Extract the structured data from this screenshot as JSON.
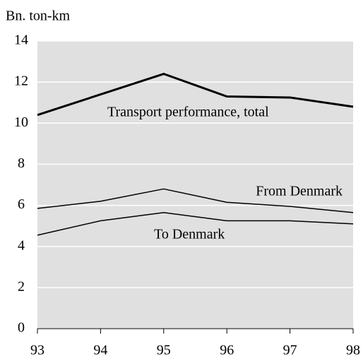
{
  "chart_data": {
    "type": "line",
    "y_label": "Bn. ton-km",
    "categories": [
      "93",
      "94",
      "95",
      "96",
      "97",
      "98"
    ],
    "series": [
      {
        "name": "Transport performance, total",
        "color": "#000000",
        "width": 3,
        "values": [
          10.4,
          11.4,
          12.4,
          11.3,
          11.25,
          10.8
        ]
      },
      {
        "name": "From Denmark",
        "color": "#000000",
        "width": 1.5,
        "values": [
          5.85,
          6.2,
          6.8,
          6.15,
          5.95,
          5.65
        ]
      },
      {
        "name": "To Denmark",
        "color": "#000000",
        "width": 1.5,
        "values": [
          4.55,
          5.25,
          5.65,
          5.25,
          5.25,
          5.1
        ]
      }
    ],
    "ylim": [
      0,
      14
    ],
    "yticks": [
      0,
      2,
      4,
      6,
      8,
      10,
      12,
      14
    ],
    "grid": true,
    "background": "#e0e0e0"
  }
}
